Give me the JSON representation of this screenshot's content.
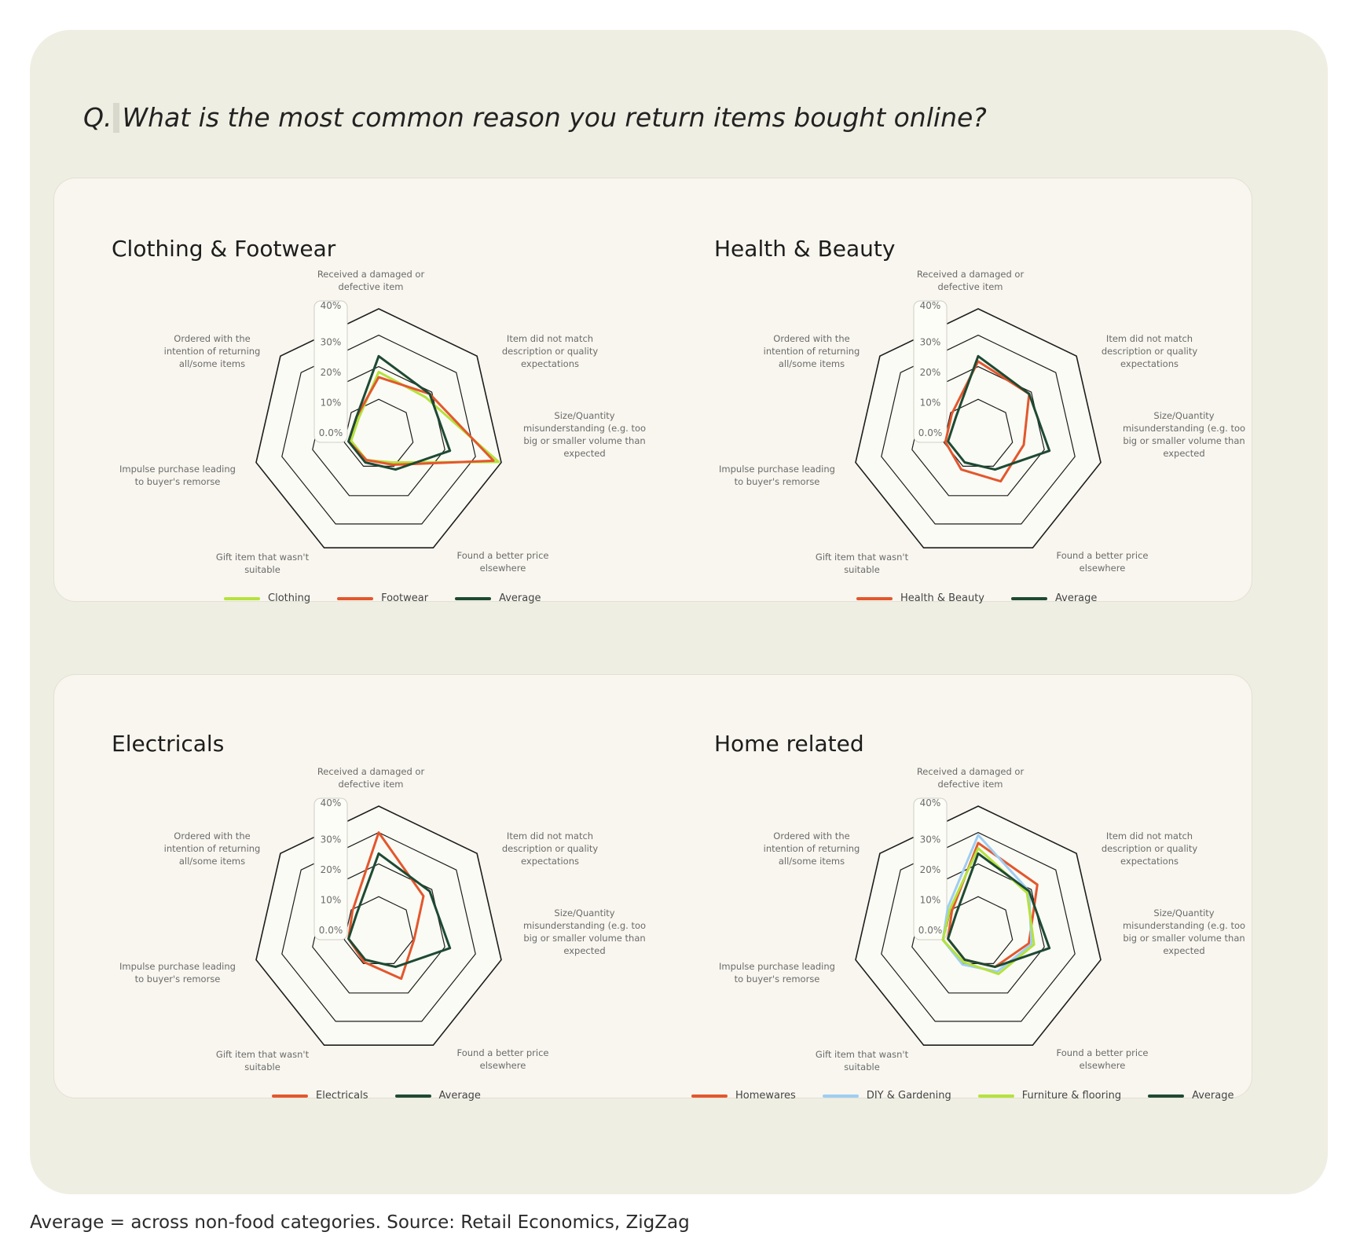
{
  "question": {
    "prefix": "Q.",
    "text": "What is the most common reason you return items bought online?"
  },
  "footnote": "Average = across non-food categories. Source: Retail Economics, ZigZag",
  "colors": {
    "Clothing": "#b5e23c",
    "Footwear": "#e3572d",
    "Average": "#1e4a33",
    "Health & Beauty": "#e3572d",
    "Electricals": "#e3572d",
    "Homewares": "#e3572d",
    "DIY & Gardening": "#9fcdf2",
    "Furniture & flooring": "#b5e23c"
  },
  "chart_data": [
    {
      "type": "radar",
      "title": "Clothing & Footwear",
      "axes": [
        "Received a damaged or defective item",
        "Item did not match description or quality expectations",
        "Size/Quantity misunderstanding (e.g. too big or smaller volume than expected",
        "Found a better price elsewhere",
        "Gift item that wasn't suitable",
        "Impulse purchase leading to buyer's remorse",
        "Ordered with the intention of returning all/some items"
      ],
      "ticks": [
        "0.0%",
        "10%",
        "20%",
        "30%",
        "40%"
      ],
      "range": [
        0,
        40
      ],
      "series": [
        {
          "name": "Clothing",
          "values": [
            16,
            15,
            39,
            4,
            3,
            3,
            2
          ]
        },
        {
          "name": "Footwear",
          "values": [
            14,
            17,
            37,
            5,
            3,
            4,
            3
          ]
        },
        {
          "name": "Average",
          "values": [
            22,
            17,
            20,
            7,
            4,
            4,
            3
          ]
        }
      ]
    },
    {
      "type": "radar",
      "title": "Health & Beauty",
      "axes": [
        "Received a damaged or defective item",
        "Item did not match description or quality expectations",
        "Size/Quantity misunderstanding (e.g. too big or smaller volume than expected",
        "Found a better price elsewhere",
        "Gift item that wasn't suitable",
        "Impulse purchase leading to buyer's remorse",
        "Ordered with the intention of returning all/some items"
      ],
      "ticks": [
        "0.0%",
        "10%",
        "20%",
        "30%",
        "40%"
      ],
      "range": [
        0,
        40
      ],
      "series": [
        {
          "name": "Health & Beauty",
          "values": [
            20,
            17,
            10,
            12,
            7,
            5,
            5
          ]
        },
        {
          "name": "Average",
          "values": [
            22,
            17,
            20,
            7,
            4,
            4,
            3
          ]
        }
      ]
    },
    {
      "type": "radar",
      "title": "Electricals",
      "axes": [
        "Received a damaged or defective item",
        "Item did not match description or quality expectations",
        "Size/Quantity misunderstanding (e.g. too big or smaller volume than expected",
        "Found a better price elsewhere",
        "Gift item that wasn't suitable",
        "Impulse purchase leading to buyer's remorse",
        "Ordered with the intention of returning all/some items"
      ],
      "ticks": [
        "0.0%",
        "10%",
        "20%",
        "30%",
        "40%"
      ],
      "range": [
        0,
        40
      ],
      "series": [
        {
          "name": "Electricals",
          "values": [
            30,
            14,
            6,
            12,
            5,
            4,
            5
          ]
        },
        {
          "name": "Average",
          "values": [
            22,
            17,
            20,
            7,
            4,
            4,
            3
          ]
        }
      ]
    },
    {
      "type": "radar",
      "title": "Home related",
      "axes": [
        "Received a damaged or defective item",
        "Item did not match description or quality expectations",
        "Size/Quantity misunderstanding (e.g. too big or smaller volume than expected",
        "Found a better price elsewhere",
        "Gift item that wasn't suitable",
        "Impulse purchase leading to buyer's remorse",
        "Ordered with the intention of returning all/some items"
      ],
      "ticks": [
        "0.0%",
        "10%",
        "20%",
        "30%",
        "40%"
      ],
      "range": [
        0,
        40
      ],
      "series": [
        {
          "name": "Homewares",
          "values": [
            26,
            21,
            12,
            7,
            4,
            4,
            5
          ]
        },
        {
          "name": "DIY & Gardening",
          "values": [
            29,
            17,
            13,
            9,
            6,
            6,
            7
          ]
        },
        {
          "name": "Furniture & flooring",
          "values": [
            24,
            16,
            14,
            10,
            5,
            6,
            6
          ]
        },
        {
          "name": "Average",
          "values": [
            22,
            17,
            20,
            7,
            4,
            4,
            3
          ]
        }
      ]
    }
  ]
}
